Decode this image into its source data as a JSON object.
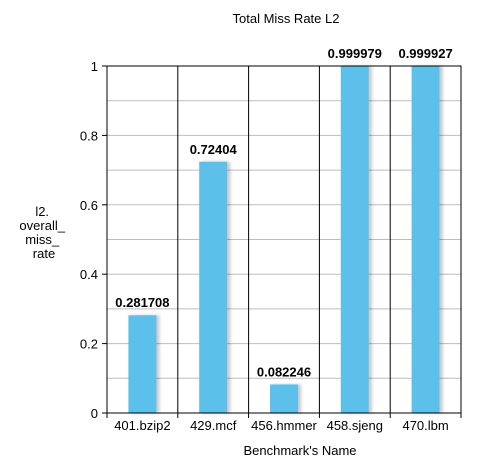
{
  "chart_data": {
    "type": "bar",
    "title": "Total Miss Rate L2",
    "xlabel": "Benchmark's Name",
    "ylabel_lines": [
      "l2.",
      "overall_",
      "miss_",
      "rate"
    ],
    "categories": [
      "401.bzip2",
      "429.mcf",
      "456.hmmer",
      "458.sjeng",
      "470.lbm"
    ],
    "values": [
      0.281708,
      0.72404,
      0.082246,
      0.999979,
      0.999927
    ],
    "value_labels": [
      "0.281708",
      "0.72404",
      "0.082246",
      "0.999979",
      "0.999927"
    ],
    "ylim": [
      0,
      1
    ],
    "yticks": [
      0,
      0.2,
      0.4,
      0.6,
      0.8,
      1
    ],
    "ytick_labels": [
      "0",
      "0.2",
      "0.4",
      "0.6",
      "0.8",
      "1"
    ],
    "grid": true,
    "bar_color": "#5bc0eb",
    "grid_color": "#bdbdbd"
  }
}
